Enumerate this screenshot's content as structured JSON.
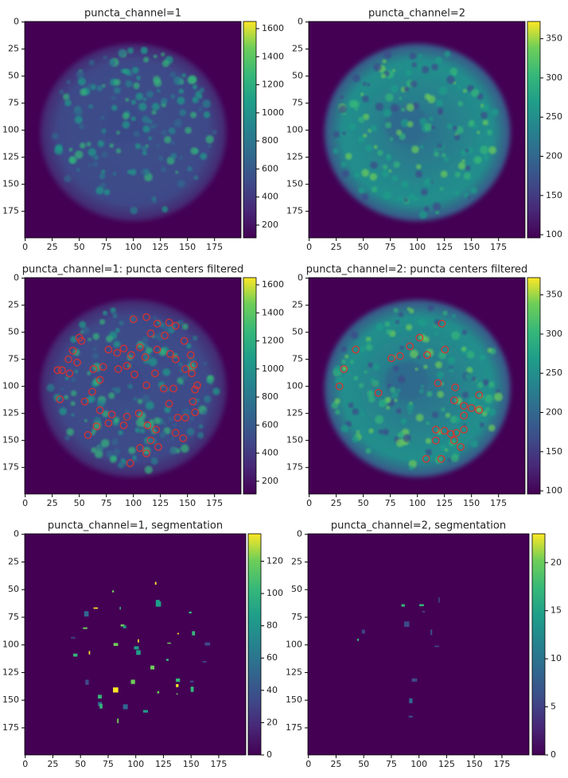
{
  "chart_data": [
    {
      "type": "heatmap",
      "title": "puncta_channel=1",
      "colormap": "viridis",
      "xlim": [
        -0.5,
        199.5
      ],
      "ylim": [
        199.5,
        -0.5
      ],
      "xticks": [
        0,
        25,
        50,
        75,
        100,
        125,
        150,
        175
      ],
      "yticks": [
        0,
        25,
        50,
        75,
        100,
        125,
        150,
        175
      ],
      "colorbar": {
        "lim": [
          109,
          1651
        ],
        "ticks": [
          200,
          400,
          600,
          800,
          1000,
          1200,
          1400,
          1600
        ]
      }
    },
    {
      "type": "heatmap",
      "title": "puncta_channel=2",
      "colormap": "viridis",
      "xlim": [
        -0.5,
        199.5
      ],
      "ylim": [
        199.5,
        -0.5
      ],
      "xticks": [
        0,
        25,
        50,
        75,
        100,
        125,
        150,
        175
      ],
      "yticks": [
        0,
        25,
        50,
        75,
        100,
        125,
        150,
        175
      ],
      "colorbar": {
        "lim": [
          96,
          372
        ],
        "ticks": [
          100,
          150,
          200,
          250,
          300,
          350
        ]
      }
    },
    {
      "type": "heatmap",
      "title": "puncta_channel=1: puncta centers filtered",
      "colormap": "viridis",
      "xlim": [
        -0.5,
        199.5
      ],
      "ylim": [
        199.5,
        -0.5
      ],
      "xticks": [
        0,
        25,
        50,
        75,
        100,
        125,
        150,
        175
      ],
      "yticks": [
        0,
        25,
        50,
        75,
        100,
        125,
        150,
        175
      ],
      "colorbar": {
        "lim": [
          109,
          1651
        ],
        "ticks": [
          200,
          400,
          600,
          800,
          1000,
          1200,
          1400,
          1600
        ]
      },
      "points": {
        "color": "#e0302a",
        "x": [
          100,
          112,
          122,
          133,
          116,
          129,
          139,
          147,
          52,
          50,
          44,
          40,
          34,
          30,
          48,
          41,
          63,
          72,
          77,
          85,
          91,
          98,
          106,
          111,
          122,
          134,
          139,
          153,
          156,
          154,
          148,
          157,
          159,
          155,
          157,
          148,
          141,
          133,
          137,
          128,
          120,
          112,
          101,
          94,
          86,
          69,
          62,
          55,
          32,
          69,
          77,
          91,
          94,
          105,
          113,
          121,
          116,
          106,
          112,
          97,
          123,
          146,
          139,
          66,
          58,
          80
        ],
        "y": [
          38,
          36,
          42,
          41,
          51,
          53,
          44,
          58,
          58,
          55,
          67,
          75,
          85,
          85,
          78,
          88,
          84,
          82,
          66,
          69,
          65,
          71,
          64,
          73,
          66,
          70,
          75,
          71,
          80,
          88,
          84,
          103,
          99,
          114,
          124,
          129,
          129,
          116,
          102,
          102,
          88,
          99,
          89,
          81,
          84,
          94,
          105,
          114,
          112,
          122,
          134,
          136,
          128,
          125,
          136,
          140,
          150,
          157,
          162,
          171,
          156,
          148,
          143,
          137,
          145,
          126
        ]
      }
    },
    {
      "type": "heatmap",
      "title": "puncta_channel=2: puncta centers filtered",
      "colormap": "viridis",
      "xlim": [
        -0.5,
        199.5
      ],
      "ylim": [
        199.5,
        -0.5
      ],
      "xticks": [
        0,
        25,
        50,
        75,
        100,
        125,
        150,
        175
      ],
      "yticks": [
        0,
        25,
        50,
        75,
        100,
        125,
        150,
        175
      ],
      "colorbar": {
        "lim": [
          96,
          372
        ],
        "ticks": [
          100,
          150,
          200,
          250,
          300,
          350
        ]
      },
      "points": {
        "color": "#e0302a",
        "x": [
          122.6,
          102,
          93,
          125.5,
          84,
          109,
          43,
          76,
          32,
          28,
          64,
          119,
          135,
          157,
          134,
          143,
          150,
          157,
          143,
          117,
          125,
          131,
          136,
          143,
          117,
          134,
          140,
          108,
          122
        ],
        "y": [
          42,
          55,
          63,
          66,
          72,
          71,
          66,
          74,
          84,
          100,
          106,
          97,
          101,
          108,
          113,
          118,
          120,
          122,
          127,
          140,
          141,
          144,
          143,
          140,
          150,
          150,
          156,
          167,
          167
        ]
      }
    },
    {
      "type": "heatmap",
      "title": "puncta_channel=1, segmentation",
      "colormap": "viridis",
      "xlim": [
        -0.5,
        199.5
      ],
      "ylim": [
        199.5,
        -0.5
      ],
      "xticks": [
        0,
        25,
        50,
        75,
        100,
        125,
        150,
        175
      ],
      "yticks": [
        0,
        25,
        50,
        75,
        100,
        125,
        150,
        175
      ],
      "colorbar": {
        "lim": [
          0,
          137
        ],
        "ticks": [
          0,
          20,
          40,
          60,
          80,
          100,
          120
        ]
      }
    },
    {
      "type": "heatmap",
      "title": "puncta_channel=2, segmentation",
      "colormap": "viridis",
      "xlim": [
        -0.5,
        199.5
      ],
      "ylim": [
        199.5,
        -0.5
      ],
      "xticks": [
        0,
        25,
        50,
        75,
        100,
        125,
        150,
        175
      ],
      "yticks": [
        0,
        25,
        50,
        75,
        100,
        125,
        150,
        175
      ],
      "colorbar": {
        "lim": [
          0,
          23
        ],
        "ticks": [
          0,
          5,
          10,
          15,
          20
        ]
      }
    }
  ]
}
